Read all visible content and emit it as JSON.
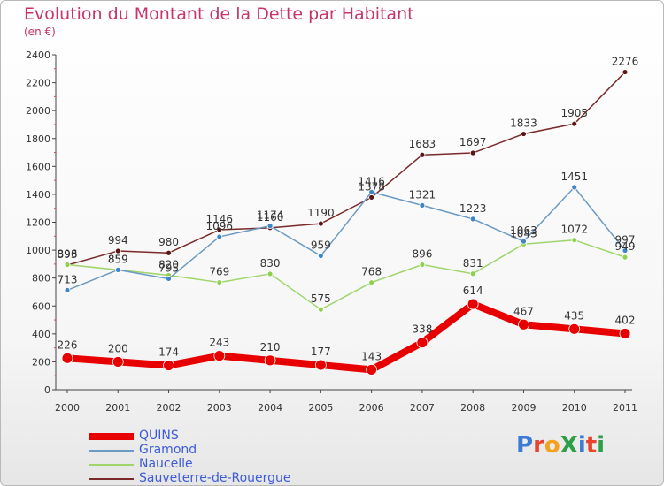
{
  "title": "Evolution du Montant de la Dette par Habitant",
  "subtitle": "(en €)",
  "logo": {
    "text": "ProXiti",
    "colors": [
      "#3a7bd5",
      "#e8432e",
      "#f2a31b",
      "#2e9e48",
      "#3a7bd5",
      "#e8432e",
      "#2e9e48"
    ]
  },
  "chart_data": {
    "type": "line",
    "categories": [
      "2000",
      "2001",
      "2002",
      "2003",
      "2004",
      "2005",
      "2006",
      "2007",
      "2008",
      "2009",
      "2010",
      "2011"
    ],
    "ylim": [
      0,
      2400
    ],
    "yticks": [
      0,
      200,
      400,
      600,
      800,
      1000,
      1200,
      1400,
      1600,
      1800,
      2000,
      2200,
      2400
    ],
    "grid": false,
    "legend_position": "bottom-left",
    "series": [
      {
        "name": "QUINS",
        "color": "#e80000",
        "values": [
          226,
          200,
          174,
          243,
          210,
          177,
          143,
          338,
          614,
          467,
          435,
          402
        ]
      },
      {
        "name": "Gramond",
        "color": "#6b9ac4",
        "values": [
          713,
          859,
          795,
          1096,
          1174,
          959,
          1416,
          1321,
          1223,
          1063,
          1451,
          997
        ]
      },
      {
        "name": "Naucelle",
        "color": "#9fd56b",
        "values": [
          896,
          859,
          820,
          769,
          830,
          575,
          768,
          896,
          831,
          1043,
          1072,
          949
        ]
      },
      {
        "name": "Sauveterre-de-Rouergue",
        "color": "#7a2a2a",
        "values": [
          893,
          994,
          980,
          1146,
          1160,
          1190,
          1378,
          1683,
          1697,
          1833,
          1905,
          2276
        ]
      }
    ]
  }
}
